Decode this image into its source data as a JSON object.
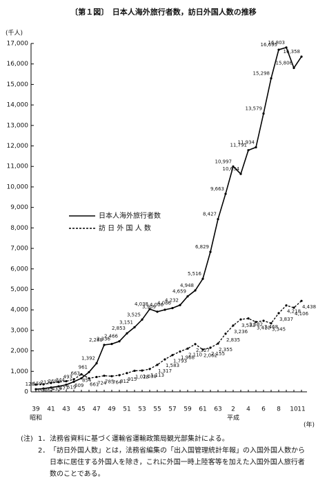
{
  "chart_data": {
    "type": "line",
    "title": "〔第１図〕　日本人海外旅行者数，訪日外国人数の推移",
    "y_unit": "(千人)",
    "x_unit": "(年)",
    "era_labels": [
      "昭和",
      "平成"
    ],
    "categories": [
      "39",
      null,
      "41",
      null,
      "43",
      null,
      "45",
      null,
      "47",
      null,
      "49",
      null,
      "51",
      null,
      "53",
      null,
      "55",
      null,
      "57",
      null,
      "59",
      null,
      "61",
      null,
      "63",
      null,
      "2",
      null,
      "4",
      null,
      "6",
      null,
      "8",
      null,
      "10",
      "11"
    ],
    "ylim": [
      0,
      17000
    ],
    "yticks": [
      0,
      {
        "value": 1000,
        "label": "1,000"
      },
      {
        "value": 2000,
        "label": "2,000"
      },
      {
        "value": 3000,
        "label": "3,000"
      },
      {
        "value": 4000,
        "label": "4,000"
      },
      {
        "value": 5000,
        "label": "5,000"
      },
      {
        "value": 6000,
        "label": "6,000"
      },
      {
        "value": 7000,
        "label": "7,000"
      },
      {
        "value": 8000,
        "label": "8,000"
      },
      {
        "value": 9000,
        "label": "9,000"
      },
      {
        "value": 10000,
        "label": "10,000"
      },
      {
        "value": 11000,
        "label": "11,000"
      },
      {
        "value": 12000,
        "label": "12,000"
      },
      {
        "value": 13000,
        "label": "13,000"
      },
      {
        "value": 14000,
        "label": "14,000"
      },
      {
        "value": 15000,
        "label": "15,000"
      },
      {
        "value": 16000,
        "label": "16,000"
      },
      {
        "value": 17000,
        "label": "17,000"
      }
    ],
    "grid": false,
    "series": [
      {
        "name": "日本人海外旅行者数",
        "color": "#000000",
        "line_style": "solid",
        "values": [
          128,
          159,
          212,
          268,
          344,
          493,
          663,
          961,
          1392,
          2289,
          2336,
          2466,
          2853,
          3151,
          3525,
          4038,
          3909,
          4006,
          4086,
          4232,
          4659,
          4948,
          5516,
          6829,
          8427,
          9663,
          10997,
          10634,
          11791,
          11934,
          13579,
          15298,
          16695,
          16803,
          15806,
          16358
        ],
        "value_labels": [
          "128",
          "159",
          "212",
          "268",
          "344",
          "493",
          "663",
          "961",
          "1,392",
          "2,289",
          "2,336",
          "2,466",
          "2,853",
          "3,151",
          "3,525",
          "4,038",
          "3,909",
          "4,006",
          "4,086",
          "4,232",
          "4,659",
          "4,948",
          "5,516",
          "6,829",
          "8,427",
          "9,663",
          "10,997",
          "10,634",
          "11,791",
          "11,934",
          "13,579",
          "15,298",
          "16,695",
          "16,803",
          "15,806",
          "16,358"
        ]
      },
      {
        "name": "訪 日 外 国 人 数",
        "color": "#000000",
        "line_style": "dashed",
        "values": [
          353,
          367,
          433,
          477,
          519,
          609,
          854,
          661,
          724,
          785,
          764,
          812,
          915,
          1028,
          1039,
          1113,
          1317,
          1583,
          1793,
          1968,
          2110,
          2327,
          2062,
          2155,
          2355,
          2835,
          3236,
          3533,
          3582,
          3410,
          3468,
          3345,
          3837,
          4218,
          4106,
          4438
        ],
        "value_labels": [
          "353",
          "367",
          "433",
          "477",
          "519",
          "609",
          "854",
          "661",
          "724",
          "785",
          "764",
          "812",
          "915",
          "1,028",
          "1,039",
          "1,113",
          "1,317",
          "1,583",
          "1,793",
          "1,968",
          "2,110",
          "2,327",
          "2,062",
          "2,155",
          "2,355",
          "2,835",
          "3,236",
          "3,533",
          "3,582",
          "3,410",
          "3,468",
          "3,345",
          "3,837",
          "4,218",
          "4,106",
          "4,438"
        ]
      }
    ],
    "legend_position": "center-left",
    "notes": {
      "head": "(注)",
      "items": [
        {
          "number": "1．",
          "lines": [
            "法務省資料に基づく運輸省運輸政策局観光部集計による。"
          ]
        },
        {
          "number": "2．",
          "lines": [
            "「訪日外国人数」とは，法務省編集の「出入国管理統計年報」の入国外国人数から",
            "日本に居住する外国人を除き，これに外国一時上陸客等を加えた入国外国人旅行者",
            "数のことである。"
          ]
        }
      ]
    }
  }
}
